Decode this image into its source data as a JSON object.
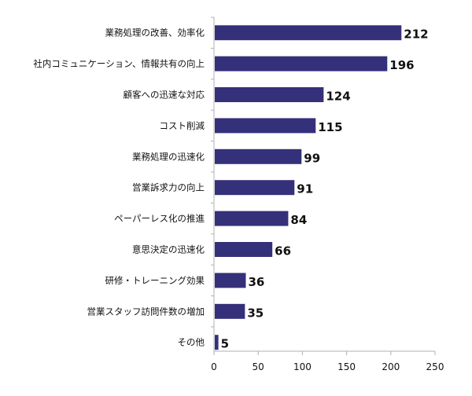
{
  "colors": {
    "bar": "#35307a",
    "axis": "#b0b0b0",
    "text": "#111111"
  },
  "chart_data": {
    "type": "bar",
    "orientation": "horizontal",
    "title": "",
    "xlabel": "",
    "ylabel": "",
    "xlim": [
      0,
      250
    ],
    "xticks": [
      0,
      50,
      100,
      150,
      200,
      250
    ],
    "grid": false,
    "legend": "none",
    "categories": [
      "業務処理の改善、効率化",
      "社内コミュニケーション、情報共有の向上",
      "顧客への迅速な対応",
      "コスト削減",
      "業務処理の迅速化",
      "営業訴求力の向上",
      "ペーパーレス化の推進",
      "意思決定の迅速化",
      "研修・トレーニング効果",
      "営業スタッフ訪問件数の増加",
      "その他"
    ],
    "values": [
      212,
      196,
      124,
      115,
      99,
      91,
      84,
      66,
      36,
      35,
      5
    ]
  }
}
